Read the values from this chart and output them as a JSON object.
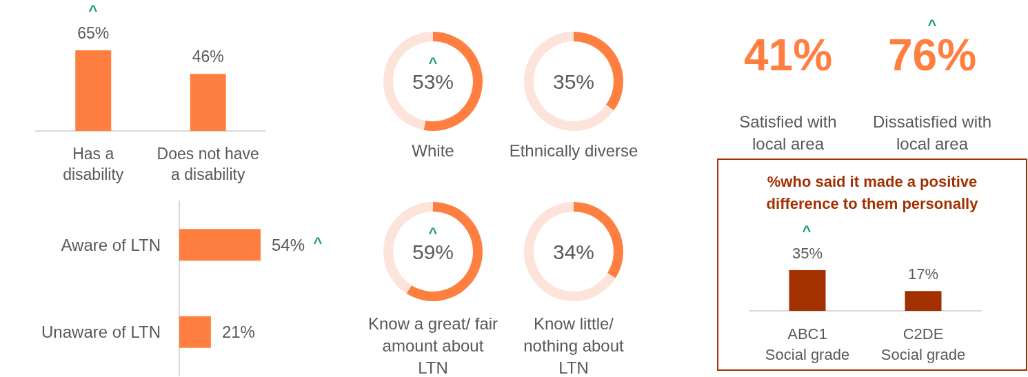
{
  "chart_data": [
    {
      "type": "bar",
      "categories": [
        "Has a\ndisability",
        "Does not have\na disability"
      ],
      "values": [
        65,
        46
      ],
      "value_labels": [
        "65%",
        "46%"
      ],
      "color": "#ff7f41",
      "annotations": [
        "^"
      ]
    },
    {
      "type": "donut",
      "title": "White",
      "categories": [
        null,
        null
      ],
      "values": [
        53,
        47
      ],
      "colors": [
        "#ff7f41",
        "#fde4da"
      ],
      "annotations": [
        "53%",
        "^"
      ]
    },
    {
      "type": "donut",
      "title": "Ethnically diverse",
      "categories": [
        null,
        null
      ],
      "values": [
        35,
        65
      ],
      "colors": [
        "#ff7f41",
        "#fde4da"
      ],
      "annotations": [
        "35%"
      ]
    },
    {
      "type": "other",
      "color": "#ff7f41",
      "annotations": [
        "41%",
        "76%",
        "^",
        "Satisfied with\nlocal area",
        "Dissatisfied with\nlocal area"
      ]
    },
    {
      "type": "bar",
      "orientation": "horizontal",
      "categories": [
        "Aware of LTN",
        "Unaware of LTN"
      ],
      "values": [
        54,
        21
      ],
      "value_labels": [
        "54%",
        "21%"
      ],
      "color": "#ff7f41",
      "annotations": [
        "^"
      ]
    },
    {
      "type": "donut",
      "title": "Know a great/ fair\namount about\nLTN",
      "categories": [
        null,
        null
      ],
      "values": [
        59,
        41
      ],
      "colors": [
        "#ff7f41",
        "#fde4da"
      ],
      "annotations": [
        "59%",
        "^"
      ]
    },
    {
      "type": "donut",
      "title": "Know little/\nnothing about\nLTN",
      "categories": [
        null,
        null
      ],
      "values": [
        34,
        66
      ],
      "colors": [
        "#ff7f41",
        "#fde4da"
      ],
      "annotations": [
        "34%"
      ]
    },
    {
      "type": "bar",
      "title": "%who said it made a positive\ndifference to them personally",
      "categories": [
        "ABC1\nSocial grade",
        "C2DE\nSocial grade"
      ],
      "values": [
        35,
        17
      ],
      "value_labels": [
        "35%",
        "17%"
      ],
      "color": "#a33000",
      "annotations": [
        "^"
      ]
    }
  ]
}
